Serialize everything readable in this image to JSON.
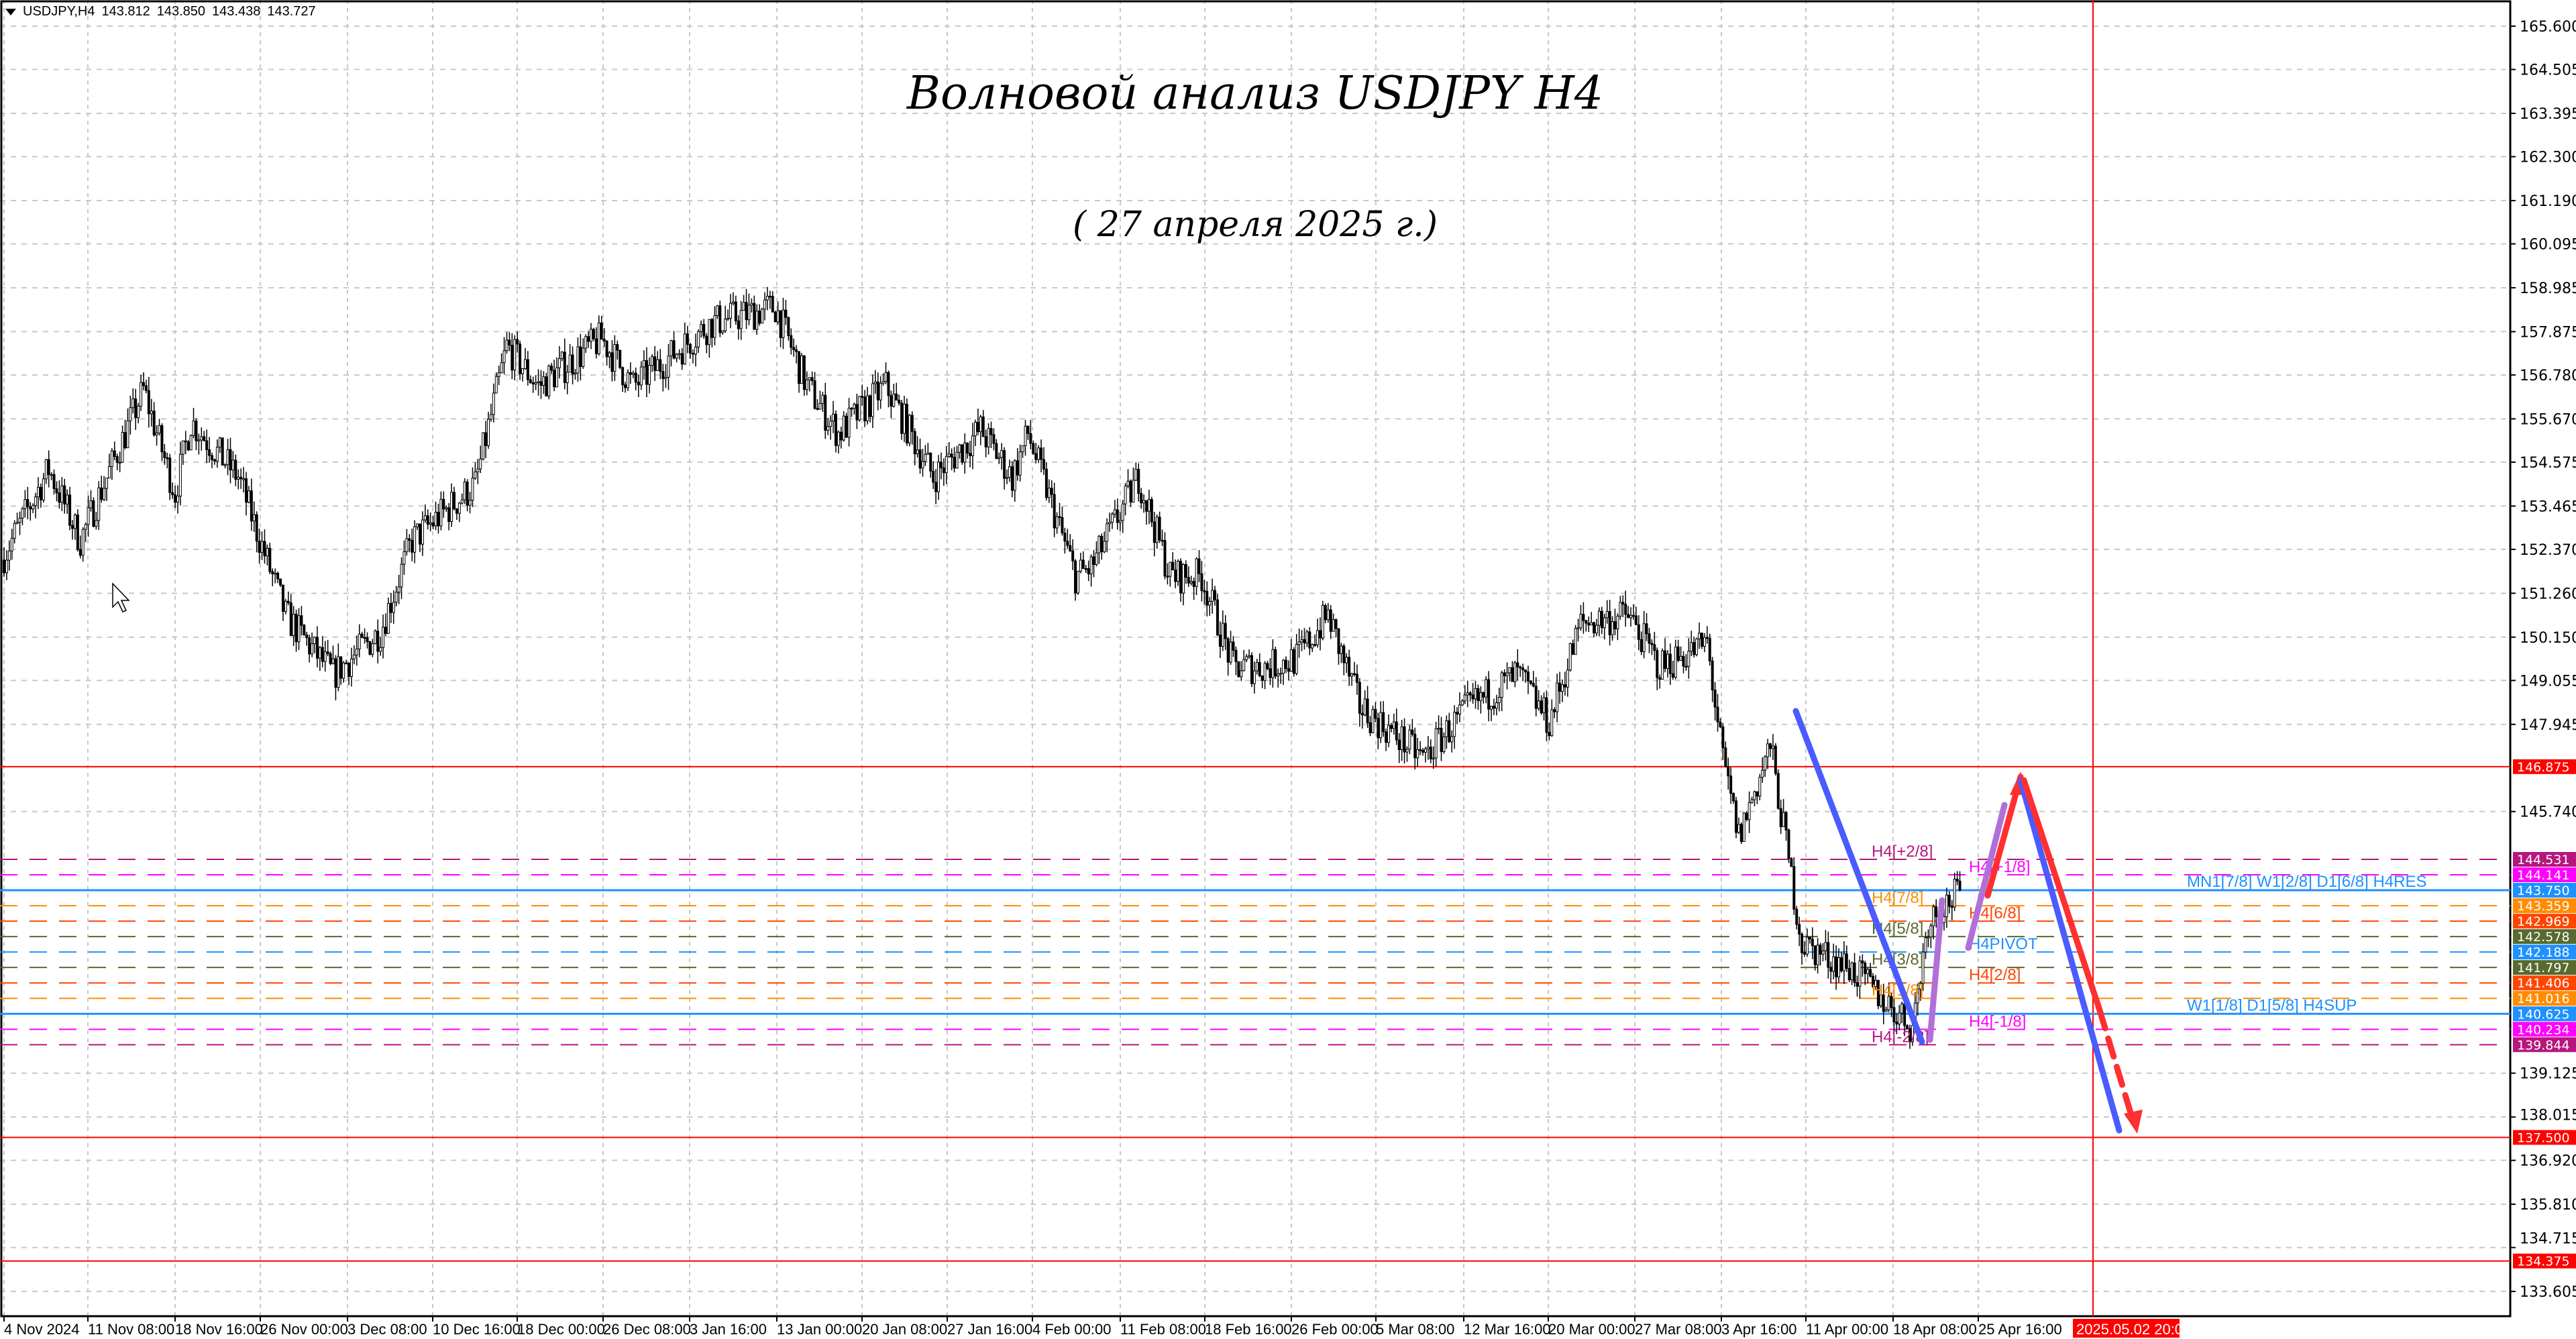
{
  "header": {
    "symbol": "USDJPY,H4",
    "open": "143.812",
    "high": "143.850",
    "low": "143.438",
    "close": "143.727"
  },
  "title": "Волновой анализ USDJPY H4",
  "subtitle": "( 27 апреля 2025  г.)",
  "chart_data": {
    "type": "candlestick",
    "price_axis_ticks": [
      "165.600",
      "164.505",
      "163.395",
      "162.300",
      "161.190",
      "160.095",
      "158.985",
      "157.875",
      "156.780",
      "155.670",
      "154.575",
      "153.465",
      "152.370",
      "151.260",
      "150.150",
      "149.055",
      "147.945",
      "145.740",
      "139.125",
      "138.015",
      "136.920",
      "135.810",
      "134.715",
      "133.605"
    ],
    "ylim": [
      133.605,
      165.6
    ],
    "time_axis_labels": [
      "4 Nov 2024",
      "11 Nov 08:00",
      "18 Nov 16:00",
      "26 Nov 00:00",
      "3 Dec 08:00",
      "10 Dec 16:00",
      "18 Dec 00:00",
      "26 Dec 08:00",
      "3 Jan 16:00",
      "13 Jan 00:00",
      "20 Jan 08:00",
      "27 Jan 16:00",
      "4 Feb 00:00",
      "11 Feb 08:00",
      "18 Feb 16:00",
      "26 Feb 00:00",
      "5 Mar 08:00",
      "12 Mar 16:00",
      "20 Mar 00:00",
      "27 Mar 08:00",
      "3 Apr 16:00",
      "11 Apr 00:00",
      "18 Apr 08:00",
      "25 Apr 16:00"
    ],
    "cursor_time_label": "2025.05.02 20:00",
    "price_path": [
      [
        "2024-11-04",
        152.1
      ],
      [
        "2024-11-07",
        154.4
      ],
      [
        "2024-11-11",
        152.6
      ],
      [
        "2024-11-15",
        156.4
      ],
      [
        "2024-11-19",
        153.8
      ],
      [
        "2024-11-20",
        155.6
      ],
      [
        "2024-11-25",
        154.2
      ],
      [
        "2024-11-28",
        150.7
      ],
      [
        "2024-12-03",
        149.2
      ],
      [
        "2024-12-06",
        150.3
      ],
      [
        "2024-12-10",
        152.6
      ],
      [
        "2024-12-16",
        154.0
      ],
      [
        "2024-12-18",
        157.5
      ],
      [
        "2024-12-20",
        156.5
      ],
      [
        "2024-12-26",
        157.7
      ],
      [
        "2024-12-30",
        156.5
      ],
      [
        "2025-01-06",
        158.1
      ],
      [
        "2025-01-10",
        158.5
      ],
      [
        "2025-01-14",
        156.5
      ],
      [
        "2025-01-16",
        155.3
      ],
      [
        "2025-01-21",
        156.5
      ],
      [
        "2025-01-24",
        154.2
      ],
      [
        "2025-01-29",
        155.4
      ],
      [
        "2025-01-31",
        154.2
      ],
      [
        "2025-02-03",
        155.3
      ],
      [
        "2025-02-06",
        151.7
      ],
      [
        "2025-02-07",
        151.9
      ],
      [
        "2025-02-12",
        154.2
      ],
      [
        "2025-02-14",
        151.7
      ],
      [
        "2025-02-18",
        151.7
      ],
      [
        "2025-02-20",
        149.4
      ],
      [
        "2025-02-24",
        149.4
      ],
      [
        "2025-02-26",
        149.6
      ],
      [
        "2025-02-28",
        150.7
      ],
      [
        "2025-03-04",
        148.4
      ],
      [
        "2025-03-10",
        147.1
      ],
      [
        "2025-03-13",
        148.4
      ],
      [
        "2025-03-18",
        149.2
      ],
      [
        "2025-03-20",
        148.0
      ],
      [
        "2025-03-24",
        150.5
      ],
      [
        "2025-03-27",
        150.7
      ],
      [
        "2025-03-31",
        149.4
      ],
      [
        "2025-04-03",
        150.0
      ],
      [
        "2025-04-04",
        147.0
      ],
      [
        "2025-04-07",
        145.1
      ],
      [
        "2025-04-09",
        147.4
      ],
      [
        "2025-04-10",
        144.9
      ],
      [
        "2025-04-11",
        142.4
      ],
      [
        "2025-04-16",
        141.8
      ],
      [
        "2025-04-22",
        140.3
      ],
      [
        "2025-04-23",
        143.0
      ],
      [
        "2025-04-25",
        143.727
      ]
    ],
    "key_levels": [
      {
        "price": 146.875,
        "label": "146.875",
        "color": "#ff0000"
      },
      {
        "price": 137.5,
        "label": "137.500",
        "color": "#ff0000"
      },
      {
        "price": 134.375,
        "label": "134.375",
        "color": "#ff0000"
      }
    ],
    "murrey_levels": [
      {
        "price": 144.531,
        "label": "144.531",
        "text": "H4[+2/8]",
        "color": "#b5177d",
        "dash": true
      },
      {
        "price": 144.141,
        "label": "144.141",
        "text": "H4[+1/8]",
        "color": "#ff00ff",
        "dash": true
      },
      {
        "price": 143.75,
        "label": "143.750",
        "text": "MN1[7/8] W1[2/8] D1[6/8] H4RES",
        "color": "#1e90ff",
        "dash": false
      },
      {
        "price": 143.359,
        "label": "143.359",
        "text": "H4[7/8]",
        "color": "#ff8c00",
        "dash": true
      },
      {
        "price": 142.969,
        "label": "142.969",
        "text": "H4[6/8]",
        "color": "#ff4500",
        "dash": true
      },
      {
        "price": 142.578,
        "label": "142.578",
        "text": "H4[5/8]",
        "color": "#556b2f",
        "dash": true
      },
      {
        "price": 142.188,
        "label": "142.188",
        "text": "H4PIVOT",
        "color": "#1e90ff",
        "dash": true
      },
      {
        "price": 141.797,
        "label": "141.797",
        "text": "H4[3/8]",
        "color": "#556b2f",
        "dash": true
      },
      {
        "price": 141.406,
        "label": "141.406",
        "text": "H4[2/8]",
        "color": "#ff4500",
        "dash": true
      },
      {
        "price": 141.016,
        "label": "141.016",
        "text": "H4[1/8]",
        "color": "#ff8c00",
        "dash": true
      },
      {
        "price": 140.625,
        "label": "140.625",
        "text": "W1[1/8] D1[5/8] H4SUP",
        "color": "#1e90ff",
        "dash": false
      },
      {
        "price": 140.234,
        "label": "140.234",
        "text": "H4[-1/8]",
        "color": "#ff00ff",
        "dash": true
      },
      {
        "price": 139.844,
        "label": "139.844",
        "text": "H4[-2/8]",
        "color": "#b5177d",
        "dash": true
      }
    ],
    "colors": {
      "wave_blue": "#4a5cff",
      "wave_purple": "#b070d8",
      "wave_red": "#ff3030",
      "cursor_line": "#ff0000"
    }
  }
}
